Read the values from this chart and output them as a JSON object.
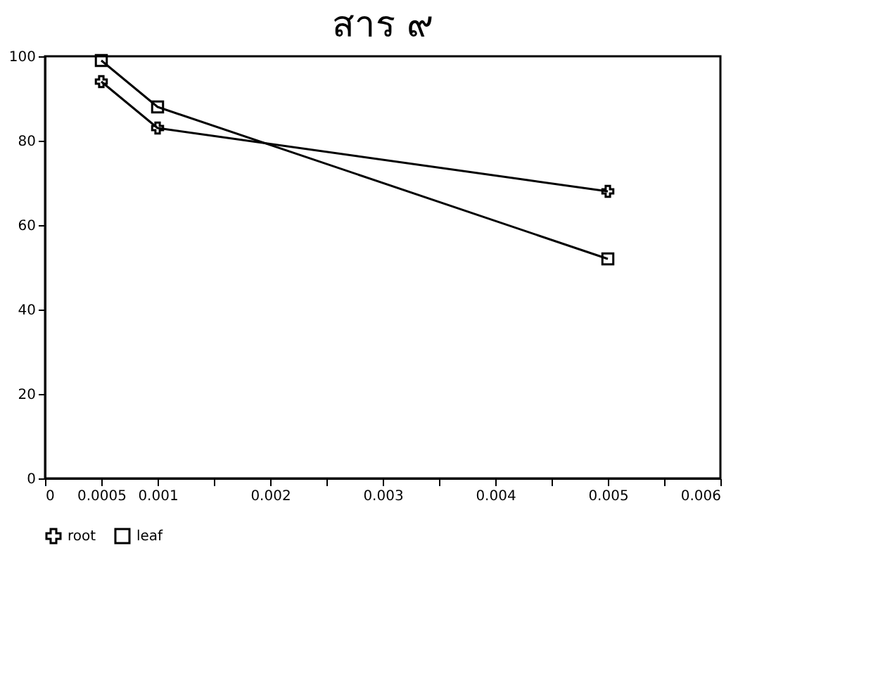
{
  "chart_data": {
    "type": "line",
    "title": "สาร ๙",
    "x": [
      0.0005,
      0.001,
      0.005
    ],
    "series": [
      {
        "name": "root",
        "color": "#000000",
        "marker": "cross",
        "values": [
          94,
          83,
          68
        ]
      },
      {
        "name": "leaf",
        "color": "#000000",
        "marker": "square",
        "values": [
          99,
          88,
          52
        ]
      }
    ],
    "xlim": [
      0,
      0.006
    ],
    "xticks": [
      0,
      0.0005,
      0.001,
      {
        "value": 0.0015,
        "label": null
      },
      0.002,
      {
        "value": 0.0025,
        "label": null
      },
      0.003,
      {
        "value": 0.0035,
        "label": null
      },
      0.004,
      {
        "value": 0.0045,
        "label": null
      },
      0.005,
      {
        "value": 0.0055,
        "label": null
      },
      0.006
    ],
    "ylim": [
      0,
      100
    ],
    "yticks": [
      0,
      20,
      40,
      60,
      80,
      100
    ],
    "grid": false,
    "legend": "bottom",
    "line_style": "solid"
  }
}
